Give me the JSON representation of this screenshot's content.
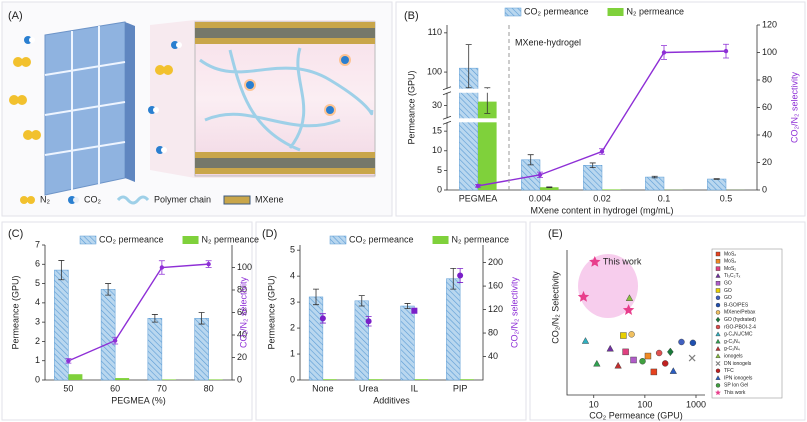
{
  "schematic": {
    "label": "(A)",
    "legend": [
      "N₂",
      "CO₂",
      "Polymer chain",
      "MXene"
    ]
  },
  "chart_data": [
    {
      "type": "bar",
      "label": "(B)",
      "xlabel": "MXene content in hydrogel (mg/mL)",
      "ylabel": "Permeance (GPU)",
      "y2label": "CO₂/N₂ selectivity",
      "annotation": "MXene-hydrogel",
      "categories": [
        "PEGMEA",
        "0.004",
        "0.02",
        "0.1",
        "0.5"
      ],
      "ylim": [
        0,
        112
      ],
      "ybreaks": [
        [
          17,
          27
        ],
        [
          33,
          96
        ]
      ],
      "yticks": [
        0,
        5,
        10,
        15,
        30,
        100,
        110
      ],
      "y2lim": [
        0,
        120
      ],
      "y2ticks": [
        0,
        20,
        40,
        60,
        80,
        100,
        120
      ],
      "series": [
        {
          "name": "CO₂ permeance",
          "kind": "bar",
          "pattern": "hatch",
          "color": "#b9d7ef",
          "values": [
            101,
            7.7,
            6.3,
            3.3,
            2.8
          ],
          "errors": [
            6,
            1.3,
            0.6,
            0.2,
            0.1
          ]
        },
        {
          "name": "N₂ permeance",
          "kind": "bar",
          "color": "#7fd13b",
          "values": [
            31,
            0.7,
            0.15,
            0.05,
            0.03
          ],
          "errors": [
            3,
            0.1,
            null,
            null,
            null
          ]
        },
        {
          "kind": "line",
          "axis": "y2",
          "color": "#8e2fd6",
          "values": [
            3,
            11,
            28,
            100,
            101
          ],
          "errors": [
            1,
            2,
            2,
            5,
            5
          ]
        }
      ]
    },
    {
      "type": "bar",
      "label": "(C)",
      "xlabel": "PEGMEA (%)",
      "ylabel": "Permeance (GPU)",
      "y2label": "CO₂/N₂ selectivity",
      "categories": [
        "50",
        "60",
        "70",
        "80"
      ],
      "ylim": [
        0,
        7
      ],
      "yticks": [
        0,
        1,
        2,
        3,
        4,
        5,
        6,
        7
      ],
      "y2lim": [
        0,
        120
      ],
      "y2ticks": [
        0,
        20,
        40,
        60,
        80,
        100
      ],
      "series": [
        {
          "name": "CO₂ permeance",
          "kind": "bar",
          "pattern": "hatch",
          "color": "#b9d7ef",
          "values": [
            5.7,
            4.7,
            3.2,
            3.2
          ],
          "errors": [
            0.5,
            0.3,
            0.2,
            0.3
          ]
        },
        {
          "name": "N₂ permeance",
          "kind": "bar",
          "color": "#7fd13b",
          "values": [
            0.3,
            0.1,
            0.03,
            0.03
          ],
          "errors": [
            null,
            null,
            null,
            null
          ]
        },
        {
          "kind": "line",
          "axis": "y2",
          "color": "#8e2fd6",
          "values": [
            17,
            35,
            100,
            103
          ],
          "errors": [
            2,
            3,
            6,
            3
          ]
        }
      ]
    },
    {
      "type": "bar",
      "label": "(D)",
      "xlabel": "Additives",
      "ylabel": "Permeance (GPU)",
      "y2label": "CO₂/N₂ selectivity",
      "categories": [
        "None",
        "Urea",
        "IL",
        "PIP"
      ],
      "ylim": [
        0,
        5.2
      ],
      "yticks": [
        0,
        1,
        2,
        3,
        4,
        5
      ],
      "y2lim": [
        0,
        230
      ],
      "y2ticks": [
        40,
        80,
        120,
        160,
        200
      ],
      "series": [
        {
          "name": "CO₂ permeance",
          "kind": "bar",
          "pattern": "hatch",
          "color": "#b9d7ef",
          "values": [
            3.2,
            3.05,
            2.85,
            3.9
          ],
          "errors": [
            0.3,
            0.2,
            0.1,
            0.4
          ]
        },
        {
          "name": "N₂ permeance",
          "kind": "bar",
          "color": "#7fd13b",
          "values": [
            0.03,
            0.03,
            0.03,
            0.03
          ],
          "errors": [
            null,
            null,
            null,
            null
          ]
        },
        {
          "kind": "point",
          "axis": "y2",
          "color": "#7a1fc8",
          "markers": [
            "circle",
            "circle",
            "square",
            "circle"
          ],
          "values": [
            105,
            100,
            118,
            178
          ],
          "errors": [
            8,
            8,
            null,
            12
          ]
        }
      ]
    },
    {
      "type": "scatter",
      "label": "(E)",
      "xlabel": "CO₂ Permeance (GPU)",
      "ylabel": "CO₂/N₂ Selectivity",
      "annotation": "This work",
      "xlog": true,
      "ylog": true,
      "xlim": [
        3,
        1500
      ],
      "ylim": [
        1,
        1000
      ],
      "xticks": [
        10,
        100,
        1000
      ],
      "series": [
        {
          "name": "MoS₂",
          "color": "#e6421e",
          "marker": "square",
          "x": [
            150
          ],
          "values": [
            3
          ]
        },
        {
          "name": "MoS₂",
          "color": "#f08a24",
          "marker": "square",
          "x": [
            115
          ],
          "values": [
            6.4
          ]
        },
        {
          "name": "MoS₂",
          "color": "#e04080",
          "marker": "square",
          "x": [
            42
          ],
          "values": [
            7.8
          ]
        },
        {
          "name": "Ti₃C₂Tₓ",
          "color": "#7030a0",
          "marker": "triangle",
          "x": [
            21
          ],
          "values": [
            9
          ]
        },
        {
          "name": "GO",
          "color": "#b05cc8",
          "marker": "square",
          "x": [
            60
          ],
          "values": [
            5.3
          ]
        },
        {
          "name": "GO",
          "color": "#e8d000",
          "marker": "square",
          "x": [
            38
          ],
          "values": [
            17
          ]
        },
        {
          "name": "GO",
          "color": "#4060c0",
          "marker": "circle",
          "x": [
            520
          ],
          "values": [
            12.5
          ]
        },
        {
          "name": "B-GO/PES",
          "color": "#2050b0",
          "marker": "circle",
          "x": [
            870
          ],
          "values": [
            12
          ]
        },
        {
          "name": "MXene/Pebax",
          "color": "#f0c060",
          "marker": "circle",
          "x": [
            55
          ],
          "values": [
            18
          ]
        },
        {
          "name": "GO (hydrated)",
          "color": "#1a7a3a",
          "marker": "diamond",
          "x": [
            315
          ],
          "values": [
            7.8
          ]
        },
        {
          "name": "rGO-PBOI-2-4",
          "color": "#e05050",
          "marker": "circle",
          "x": [
            190
          ],
          "values": [
            7.4
          ]
        },
        {
          "name": "g-C₃N₄/CMC",
          "color": "#30b0c0",
          "marker": "triangle",
          "x": [
            6.9
          ],
          "values": [
            13
          ]
        },
        {
          "name": "g-C₃N₄",
          "color": "#30a050",
          "marker": "triangle",
          "x": [
            11.5
          ],
          "values": [
            4.4
          ]
        },
        {
          "name": "g-C₃N₄",
          "color": "#c03030",
          "marker": "triangle",
          "x": [
            30
          ],
          "values": [
            4
          ]
        },
        {
          "name": "ionogels",
          "color": "#8ac040",
          "marker": "triangle",
          "x": [
            50
          ],
          "values": [
            100
          ]
        },
        {
          "name": "DN ionogels",
          "color": "#808080",
          "marker": "cross",
          "x": [
            840
          ],
          "values": [
            5.8
          ]
        },
        {
          "name": "TFC",
          "color": "#c02020",
          "marker": "circle",
          "x": [
            250
          ],
          "values": [
            4.5
          ]
        },
        {
          "name": "IPN ionogels",
          "color": "#2a5cc0",
          "marker": "triangle",
          "x": [
            360
          ],
          "values": [
            3.1
          ]
        },
        {
          "name": "SP Ion Gel",
          "color": "#40a040",
          "marker": "circle",
          "x": [
            90
          ],
          "values": [
            5
          ]
        },
        {
          "name": "This work",
          "color": "#e83e8c",
          "marker": "star",
          "x": [
            10.5,
            6.3,
            48
          ],
          "values": [
            565,
            107,
            57
          ]
        }
      ]
    }
  ]
}
